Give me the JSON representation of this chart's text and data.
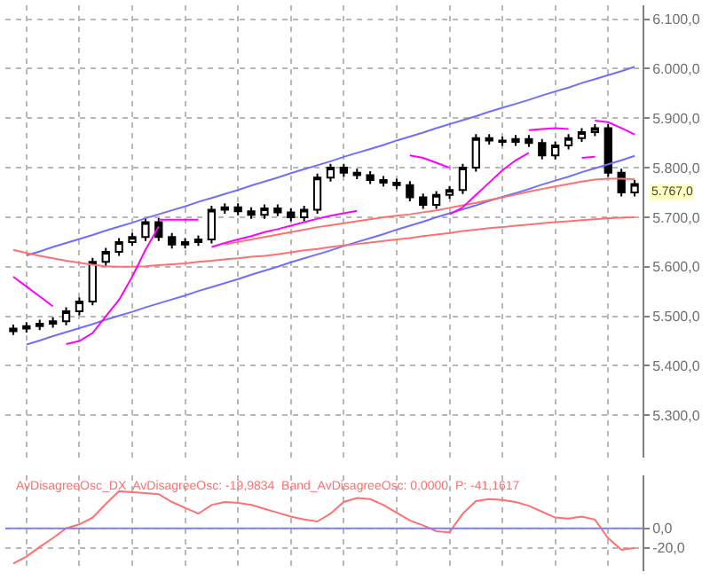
{
  "chart_data": [
    {
      "type": "candlestick",
      "color": "#000000",
      "categories": [
        null,
        null,
        null,
        null,
        null,
        null,
        null,
        null,
        null,
        null,
        null,
        null,
        null,
        null,
        null,
        null,
        null,
        null,
        null,
        null,
        null,
        null,
        null,
        null,
        null,
        null,
        null,
        null,
        null,
        null,
        null,
        null,
        null,
        null,
        null,
        null,
        null,
        null,
        null,
        null,
        null,
        null,
        null,
        null,
        null,
        null,
        null,
        null
      ],
      "ohlc": [
        [
          5470,
          5483,
          5462,
          5475
        ],
        [
          5475,
          5488,
          5467,
          5480
        ],
        [
          5480,
          5493,
          5472,
          5485
        ],
        [
          5485,
          5498,
          5477,
          5490
        ],
        [
          5490,
          5518,
          5482,
          5510
        ],
        [
          5510,
          5538,
          5502,
          5530
        ],
        [
          5530,
          5618,
          5522,
          5610
        ],
        [
          5610,
          5638,
          5602,
          5630
        ],
        [
          5630,
          5658,
          5622,
          5650
        ],
        [
          5650,
          5668,
          5642,
          5660
        ],
        [
          5660,
          5698,
          5652,
          5690
        ],
        [
          5690,
          5698,
          5652,
          5660
        ],
        [
          5660,
          5668,
          5637,
          5645
        ],
        [
          5645,
          5658,
          5637,
          5650
        ],
        [
          5650,
          5663,
          5642,
          5655
        ],
        [
          5655,
          5723,
          5647,
          5715
        ],
        [
          5715,
          5728,
          5707,
          5720
        ],
        [
          5720,
          5728,
          5704,
          5712
        ],
        [
          5712,
          5720,
          5697,
          5705
        ],
        [
          5705,
          5726,
          5697,
          5718
        ],
        [
          5718,
          5726,
          5702,
          5710
        ],
        [
          5710,
          5718,
          5692,
          5700
        ],
        [
          5700,
          5723,
          5692,
          5715
        ],
        [
          5715,
          5788,
          5707,
          5780
        ],
        [
          5780,
          5808,
          5772,
          5800
        ],
        [
          5800,
          5808,
          5782,
          5790
        ],
        [
          5790,
          5798,
          5777,
          5785
        ],
        [
          5785,
          5793,
          5767,
          5775
        ],
        [
          5775,
          5783,
          5762,
          5770
        ],
        [
          5770,
          5778,
          5757,
          5765
        ],
        [
          5765,
          5773,
          5732,
          5740
        ],
        [
          5740,
          5748,
          5717,
          5725
        ],
        [
          5725,
          5753,
          5717,
          5745
        ],
        [
          5745,
          5763,
          5737,
          5755
        ],
        [
          5755,
          5808,
          5747,
          5800
        ],
        [
          5800,
          5868,
          5792,
          5860
        ],
        [
          5860,
          5868,
          5847,
          5855
        ],
        [
          5855,
          5863,
          5844,
          5852
        ],
        [
          5852,
          5866,
          5844,
          5858
        ],
        [
          5858,
          5866,
          5842,
          5850
        ],
        [
          5850,
          5858,
          5817,
          5825
        ],
        [
          5825,
          5853,
          5817,
          5845
        ],
        [
          5845,
          5868,
          5837,
          5860
        ],
        [
          5860,
          5880,
          5852,
          5872
        ],
        [
          5872,
          5888,
          5864,
          5880
        ],
        [
          5880,
          5888,
          5782,
          5790
        ],
        [
          5790,
          5798,
          5742,
          5750
        ],
        [
          5750,
          5775,
          5742,
          5767
        ]
      ],
      "series": [
        {
          "type": "line",
          "color": "#6f6fff",
          "values": [
            null,
            5623,
            5631,
            5640,
            5648,
            5656,
            5664,
            5673,
            5681,
            5689,
            5698,
            5706,
            5714,
            5722,
            5731,
            5739,
            5747,
            5755,
            5764,
            5772,
            5780,
            5789,
            5797,
            5805,
            5813,
            5822,
            5830,
            5838,
            5846,
            5855,
            5863,
            5871,
            5880,
            5888,
            5896,
            5904,
            5913,
            5921,
            5929,
            5937,
            5946,
            5954,
            5962,
            5971,
            5979,
            5987,
            5995,
            6004
          ]
        },
        {
          "type": "line",
          "color": "#6f6fff",
          "values": [
            null,
            5443,
            5451,
            5460,
            5468,
            5476,
            5484,
            5493,
            5501,
            5509,
            5518,
            5526,
            5534,
            5542,
            5551,
            5559,
            5567,
            5575,
            5584,
            5592,
            5600,
            5609,
            5617,
            5625,
            5633,
            5642,
            5650,
            5658,
            5666,
            5675,
            5683,
            5691,
            5700,
            5708,
            5716,
            5724,
            5733,
            5741,
            5749,
            5757,
            5766,
            5774,
            5782,
            5791,
            5799,
            5807,
            5815,
            5824
          ]
        },
        {
          "type": "line",
          "color": "#ff7070",
          "values": [
            5634,
            5628,
            5622,
            5617,
            5612,
            5608,
            5604,
            5601,
            5600,
            5600,
            5601,
            5603,
            5605,
            5607,
            5610,
            5612,
            5615,
            5617,
            5620,
            5622,
            5625,
            5629,
            5633,
            5636,
            5640,
            5643,
            5646,
            5649,
            5652,
            5655,
            5658,
            5662,
            5665,
            5668,
            5672,
            5675,
            5678,
            5680,
            5683,
            5685,
            5688,
            5690,
            5692,
            5694,
            5696,
            5698,
            5699,
            5700
          ]
        },
        {
          "type": "line",
          "color": "#ff7070",
          "values": [
            null,
            null,
            null,
            null,
            null,
            null,
            null,
            null,
            null,
            null,
            null,
            null,
            null,
            null,
            null,
            null,
            5645,
            5650,
            5655,
            5660,
            5665,
            5670,
            5675,
            5680,
            5684,
            5688,
            5692,
            5696,
            5700,
            5703,
            5706,
            5710,
            5714,
            5719,
            5724,
            5729,
            5735,
            5740,
            5746,
            5752,
            5757,
            5762,
            5767,
            5772,
            5776,
            5778,
            5778,
            5777
          ]
        },
        {
          "type": "line",
          "color": "#ff00ff",
          "values": [
            5580,
            5560,
            5540,
            5520,
            null,
            null,
            null,
            null,
            null,
            null,
            null,
            5695,
            5695,
            5695,
            5695,
            null,
            null,
            null,
            null,
            null,
            null,
            null,
            null,
            null,
            null,
            null,
            null,
            null,
            null,
            null,
            5825,
            5820,
            5810,
            5800,
            null,
            null,
            null,
            null,
            null,
            5876,
            5878,
            5880,
            5878,
            null,
            5895,
            5892,
            5880,
            5867
          ]
        },
        {
          "type": "line",
          "color": "#ff00ff",
          "values": [
            null,
            null,
            null,
            null,
            5444,
            5450,
            5466,
            5500,
            5533,
            5580,
            5634,
            5681,
            null,
            null,
            null,
            5640,
            5648,
            5655,
            5662,
            5670,
            5676,
            5683,
            5690,
            5697,
            5703,
            5708,
            5713,
            null,
            null,
            null,
            null,
            null,
            null,
            5706,
            5720,
            5745,
            5770,
            5795,
            5815,
            5830,
            null,
            null,
            null,
            5820,
            5822,
            null,
            null,
            null
          ]
        }
      ],
      "ylim": [
        5215,
        6128
      ],
      "yticks": [
        {
          "value": 5300,
          "label": "5.300,0"
        },
        {
          "value": 5400,
          "label": "5.400,0"
        },
        {
          "value": 5500,
          "label": "5.500,0"
        },
        {
          "value": 5600,
          "label": "5.600,0"
        },
        {
          "value": 5700,
          "label": "5.700,0"
        },
        {
          "value": 5800,
          "label": "5.800,0"
        },
        {
          "value": 5900,
          "label": "5.900,0"
        },
        {
          "value": 6000,
          "label": "6.000,0"
        },
        {
          "value": 6100,
          "label": "6.100,0"
        }
      ],
      "grid": true,
      "annotations": [
        "5.767,0"
      ]
    },
    {
      "type": "line",
      "title": "AvDisagreeOsc_DX  AvDisagreeOsc: -19,9834  Band_AvDisagreeOsc: 0,0000  P: -41,1617",
      "categories": [
        null,
        null,
        null,
        null,
        null,
        null,
        null,
        null,
        null,
        null,
        null,
        null,
        null,
        null,
        null,
        null,
        null,
        null,
        null,
        null,
        null,
        null,
        null,
        null,
        null,
        null,
        null,
        null,
        null,
        null,
        null,
        null,
        null,
        null,
        null,
        null,
        null,
        null,
        null,
        null,
        null,
        null,
        null,
        null,
        null,
        null,
        null,
        null
      ],
      "series": [
        {
          "color": "#ff7070",
          "values": [
            -36,
            -29,
            -19,
            -10,
            0,
            4,
            11,
            25,
            38,
            37,
            36,
            35,
            27,
            21,
            15,
            24,
            27,
            26,
            24,
            20,
            16,
            12,
            9,
            7,
            15,
            27,
            31,
            30,
            24,
            16,
            8,
            3,
            -3,
            -4,
            15,
            28,
            30,
            29,
            27,
            23,
            17,
            11,
            10,
            12,
            9,
            -10,
            -22,
            -20
          ]
        }
      ],
      "ref_lines": [
        {
          "axis": "y",
          "value": 0,
          "color": "#8080ff"
        }
      ],
      "ylim": [
        -44,
        54
      ],
      "yticks": [
        {
          "value": -20,
          "label": "-20,0"
        },
        {
          "value": 0,
          "label": "0,0"
        }
      ],
      "grid": true
    }
  ]
}
